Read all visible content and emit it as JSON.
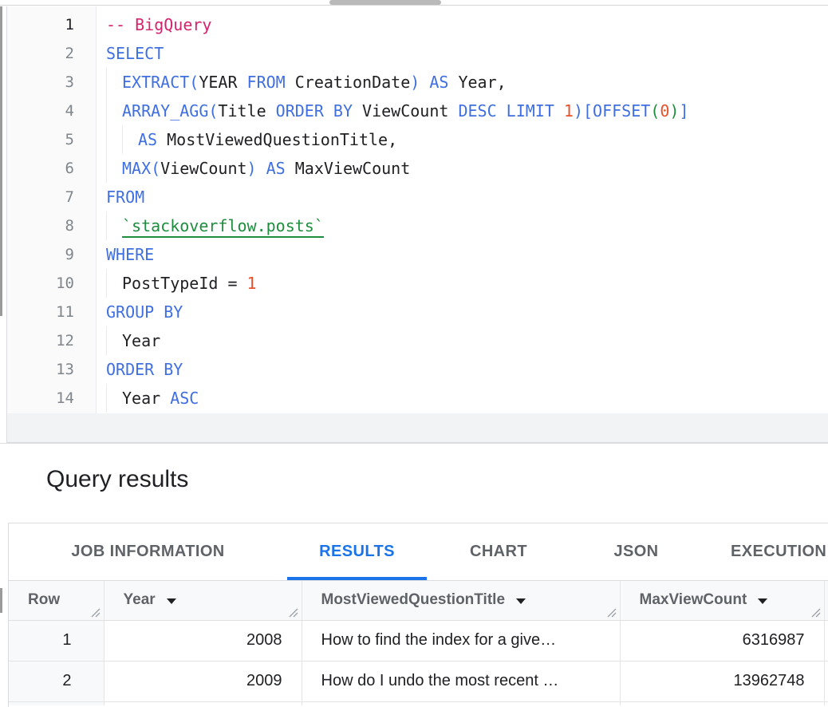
{
  "colors": {
    "accent_blue": "#1a73e8",
    "keyword_blue": "#3f6fe0",
    "comment_pink": "#d5246e",
    "number_orange": "#e5522b",
    "table_ref_green": "#1e8e3e",
    "text_dark": "#202124",
    "text_gray": "#5f6368",
    "border_gray": "#dadce0"
  },
  "editor": {
    "lines": [
      {
        "n": "1",
        "indent": 0,
        "active": true,
        "tokens": [
          {
            "c": "comment",
            "t": "-- BigQuery"
          }
        ]
      },
      {
        "n": "2",
        "indent": 0,
        "tokens": [
          {
            "c": "kw",
            "t": "SELECT"
          }
        ]
      },
      {
        "n": "3",
        "indent": 1,
        "tokens": [
          {
            "c": "kw",
            "t": "EXTRACT("
          },
          {
            "c": "id",
            "t": "YEAR "
          },
          {
            "c": "kw",
            "t": "FROM "
          },
          {
            "c": "id",
            "t": "CreationDate"
          },
          {
            "c": "kw",
            "t": ") AS"
          },
          {
            "c": "id",
            "t": " Year,"
          }
        ]
      },
      {
        "n": "4",
        "indent": 1,
        "tokens": [
          {
            "c": "kw",
            "t": "ARRAY_AGG("
          },
          {
            "c": "id",
            "t": "Title "
          },
          {
            "c": "kw",
            "t": "ORDER BY "
          },
          {
            "c": "id",
            "t": "ViewCount "
          },
          {
            "c": "kw",
            "t": "DESC LIMIT "
          },
          {
            "c": "num",
            "t": "1"
          },
          {
            "c": "kw",
            "t": ")[OFFSET"
          },
          {
            "c": "p2",
            "t": "("
          },
          {
            "c": "num",
            "t": "0"
          },
          {
            "c": "p2",
            "t": ")"
          },
          {
            "c": "kw",
            "t": "]"
          }
        ]
      },
      {
        "n": "5",
        "indent": 2,
        "tokens": [
          {
            "c": "kw",
            "t": "AS"
          },
          {
            "c": "id",
            "t": " MostViewedQuestionTitle,"
          }
        ]
      },
      {
        "n": "6",
        "indent": 1,
        "tokens": [
          {
            "c": "kw",
            "t": "MAX("
          },
          {
            "c": "id",
            "t": "ViewCount"
          },
          {
            "c": "kw",
            "t": ") AS"
          },
          {
            "c": "id",
            "t": " MaxViewCount"
          }
        ]
      },
      {
        "n": "7",
        "indent": 0,
        "tokens": [
          {
            "c": "kw",
            "t": "FROM"
          }
        ]
      },
      {
        "n": "8",
        "indent": 1,
        "tokens": [
          {
            "c": "tbl",
            "t": "`stackoverflow.posts`"
          }
        ]
      },
      {
        "n": "9",
        "indent": 0,
        "tokens": [
          {
            "c": "kw",
            "t": "WHERE"
          }
        ]
      },
      {
        "n": "10",
        "indent": 1,
        "tokens": [
          {
            "c": "id",
            "t": "PostTypeId = "
          },
          {
            "c": "num",
            "t": "1"
          }
        ]
      },
      {
        "n": "11",
        "indent": 0,
        "tokens": [
          {
            "c": "kw",
            "t": "GROUP BY"
          }
        ]
      },
      {
        "n": "12",
        "indent": 1,
        "tokens": [
          {
            "c": "id",
            "t": "Year"
          }
        ]
      },
      {
        "n": "13",
        "indent": 0,
        "tokens": [
          {
            "c": "kw",
            "t": "ORDER BY"
          }
        ]
      },
      {
        "n": "14",
        "indent": 1,
        "tokens": [
          {
            "c": "id",
            "t": "Year "
          },
          {
            "c": "kw",
            "t": "ASC"
          }
        ]
      }
    ]
  },
  "results": {
    "title": "Query results",
    "tabs": [
      {
        "id": "job-information",
        "label": "JOB INFORMATION",
        "active": false
      },
      {
        "id": "results",
        "label": "RESULTS",
        "active": true
      },
      {
        "id": "chart",
        "label": "CHART",
        "active": false
      },
      {
        "id": "json",
        "label": "JSON",
        "active": false
      },
      {
        "id": "execution-details",
        "label": "EXECUTION DETAILS",
        "active": false
      }
    ],
    "table": {
      "columns": [
        {
          "id": "row",
          "label": "Row",
          "sortable": false
        },
        {
          "id": "year",
          "label": "Year",
          "sortable": true
        },
        {
          "id": "most-viewed-question-title",
          "label": "MostViewedQuestionTitle",
          "sortable": true
        },
        {
          "id": "max-view-count",
          "label": "MaxViewCount",
          "sortable": true
        }
      ],
      "rows": [
        [
          "1",
          "2008",
          "How to find the index for a give…",
          "6316987"
        ],
        [
          "2",
          "2009",
          "How do I undo the most recent …",
          "13962748"
        ]
      ]
    }
  }
}
